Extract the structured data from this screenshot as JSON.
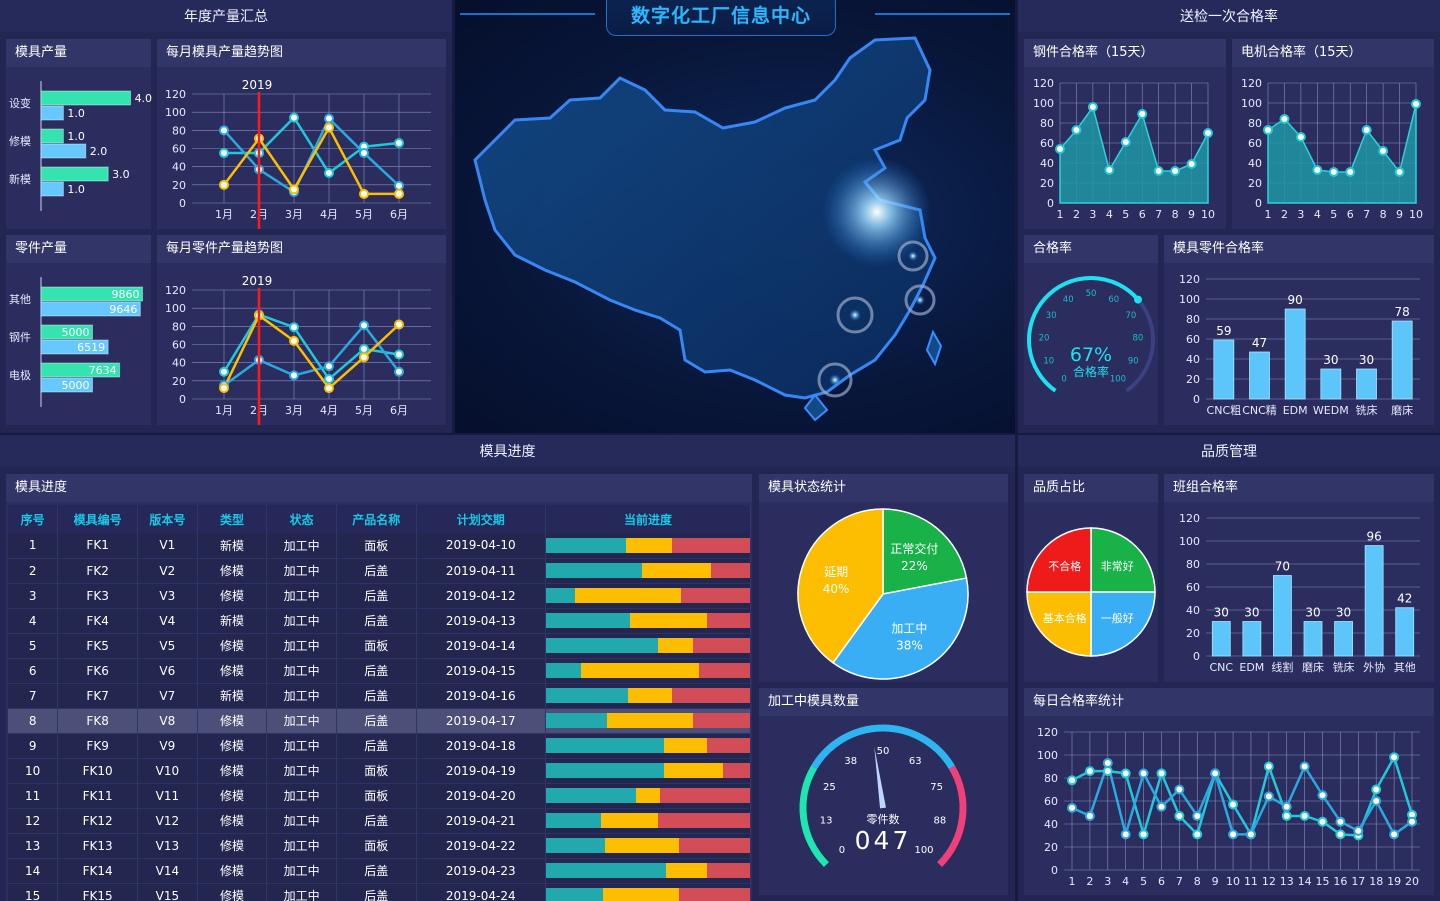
{
  "header": {
    "title": "数字化工厂信息中心"
  },
  "sections": {
    "annual": "年度产量汇总",
    "inspection": "送检一次合格率",
    "mold_progress": "模具进度",
    "quality": "品质管理"
  },
  "colors": {
    "teal": "#21a9ae",
    "yellow": "#fdbd00",
    "red": "#d24d57",
    "cyan": "#1fc8db",
    "green": "#18b249",
    "blue": "#3aaef5",
    "mint": "#34e3b0",
    "skyblue": "#66c8ff"
  },
  "mold_output": {
    "title": "模具产量",
    "categories": [
      "设变",
      "修模",
      "新模"
    ],
    "series": [
      [
        4.0,
        1.0,
        3.0
      ],
      [
        1.0,
        2.0,
        1.0
      ]
    ]
  },
  "part_output": {
    "title": "零件产量",
    "categories": [
      "其他",
      "钢件",
      "电极"
    ],
    "series": [
      [
        9860,
        5000,
        7634
      ],
      [
        9646,
        6519,
        5000
      ]
    ]
  },
  "mold_trend": {
    "title": "每月模具产量趋势图",
    "year": "2019",
    "x": [
      "1月",
      "2月",
      "3月",
      "4月",
      "5月",
      "6月"
    ],
    "yticks": [
      "0",
      "20",
      "40",
      "60",
      "80",
      "100",
      "120"
    ],
    "series": [
      {
        "color": "#1fc8db",
        "values": [
          55,
          55,
          94,
          33,
          62,
          66
        ]
      },
      {
        "color": "#2ba8e0",
        "values": [
          80,
          37,
          12,
          93,
          55,
          19
        ]
      },
      {
        "color": "#fdbd00",
        "values": [
          20,
          71,
          15,
          83,
          10,
          10
        ]
      }
    ]
  },
  "part_trend": {
    "title": "每月零件产量趋势图",
    "year": "2019",
    "x": [
      "1月",
      "2月",
      "3月",
      "4月",
      "5月",
      "6月"
    ],
    "yticks": [
      "0",
      "20",
      "40",
      "60",
      "80",
      "100",
      "120"
    ],
    "series": [
      {
        "color": "#1fc8db",
        "values": [
          30,
          93,
          79,
          22,
          55,
          49
        ]
      },
      {
        "color": "#2ba8e0",
        "values": [
          15,
          43,
          26,
          36,
          81,
          30
        ]
      },
      {
        "color": "#fdbd00",
        "values": [
          12,
          92,
          64,
          12,
          46,
          82
        ]
      }
    ]
  },
  "steel_rate": {
    "title": "钢件合格率（15天）",
    "x": [
      "1",
      "2",
      "3",
      "4",
      "5",
      "6",
      "7",
      "8",
      "9",
      "10"
    ],
    "values": [
      54,
      73,
      96,
      33,
      61,
      89,
      32,
      32,
      39,
      70
    ],
    "yticks": [
      "0",
      "20",
      "40",
      "60",
      "80",
      "100",
      "120"
    ]
  },
  "motor_rate": {
    "title": "电机合格率（15天）",
    "x": [
      "1",
      "2",
      "3",
      "4",
      "5",
      "6",
      "7",
      "8",
      "9",
      "10"
    ],
    "values": [
      73,
      84,
      66,
      33,
      31,
      31,
      73,
      52,
      31,
      99
    ],
    "yticks": [
      "0",
      "20",
      "40",
      "60",
      "80",
      "100",
      "120"
    ]
  },
  "pass_rate": {
    "title": "合格率",
    "value": 67,
    "value_text": "67%",
    "label": "合格率",
    "ticks": [
      "0",
      "10",
      "20",
      "30",
      "40",
      "50",
      "60",
      "70",
      "80",
      "90",
      "100"
    ]
  },
  "mold_part_rate": {
    "title": "模具零件合格率",
    "categories": [
      "CNC粗",
      "CNC精",
      "EDM",
      "WEDM",
      "铣床",
      "磨床"
    ],
    "values": [
      59,
      47,
      90,
      30,
      30,
      78
    ],
    "yticks": [
      "0",
      "20",
      "40",
      "60",
      "80",
      "100",
      "120"
    ]
  },
  "progress_table": {
    "title": "模具进度",
    "columns": [
      "序号",
      "模具编号",
      "版本号",
      "类型",
      "状态",
      "产品名称",
      "计划交期",
      "当前进度"
    ],
    "rows": [
      {
        "no": "1",
        "code": "FK1",
        "ver": "V1",
        "type": "新模",
        "status": "加工中",
        "product": "面板",
        "date": "2019-04-10",
        "p": [
          0.39,
          0.23,
          0.38
        ]
      },
      {
        "no": "2",
        "code": "FK2",
        "ver": "V2",
        "type": "修模",
        "status": "加工中",
        "product": "后盖",
        "date": "2019-04-11",
        "p": [
          0.47,
          0.34,
          0.19
        ]
      },
      {
        "no": "3",
        "code": "FK3",
        "ver": "V3",
        "type": "修模",
        "status": "加工中",
        "product": "后盖",
        "date": "2019-04-12",
        "p": [
          0.14,
          0.52,
          0.34
        ]
      },
      {
        "no": "4",
        "code": "FK4",
        "ver": "V4",
        "type": "新模",
        "status": "加工中",
        "product": "后盖",
        "date": "2019-04-13",
        "p": [
          0.41,
          0.38,
          0.21
        ]
      },
      {
        "no": "5",
        "code": "FK5",
        "ver": "V5",
        "type": "修模",
        "status": "加工中",
        "product": "面板",
        "date": "2019-04-14",
        "p": [
          0.55,
          0.17,
          0.28
        ]
      },
      {
        "no": "6",
        "code": "FK6",
        "ver": "V6",
        "type": "修模",
        "status": "加工中",
        "product": "后盖",
        "date": "2019-04-15",
        "p": [
          0.17,
          0.58,
          0.25
        ]
      },
      {
        "no": "7",
        "code": "FK7",
        "ver": "V7",
        "type": "新模",
        "status": "加工中",
        "product": "后盖",
        "date": "2019-04-16",
        "p": [
          0.4,
          0.22,
          0.38
        ]
      },
      {
        "no": "8",
        "code": "FK8",
        "ver": "V8",
        "type": "修模",
        "status": "加工中",
        "product": "后盖",
        "date": "2019-04-17",
        "p": [
          0.3,
          0.42,
          0.28
        ]
      },
      {
        "no": "9",
        "code": "FK9",
        "ver": "V9",
        "type": "修模",
        "status": "加工中",
        "product": "后盖",
        "date": "2019-04-18",
        "p": [
          0.58,
          0.21,
          0.21
        ]
      },
      {
        "no": "10",
        "code": "FK10",
        "ver": "V10",
        "type": "修模",
        "status": "加工中",
        "product": "面板",
        "date": "2019-04-19",
        "p": [
          0.58,
          0.29,
          0.13
        ]
      },
      {
        "no": "11",
        "code": "FK11",
        "ver": "V11",
        "type": "修模",
        "status": "加工中",
        "product": "面板",
        "date": "2019-04-20",
        "p": [
          0.44,
          0.12,
          0.44
        ]
      },
      {
        "no": "12",
        "code": "FK12",
        "ver": "V12",
        "type": "修模",
        "status": "加工中",
        "product": "后盖",
        "date": "2019-04-21",
        "p": [
          0.27,
          0.28,
          0.45
        ]
      },
      {
        "no": "13",
        "code": "FK13",
        "ver": "V13",
        "type": "修模",
        "status": "加工中",
        "product": "面板",
        "date": "2019-04-22",
        "p": [
          0.29,
          0.36,
          0.35
        ]
      },
      {
        "no": "14",
        "code": "FK14",
        "ver": "V14",
        "type": "修模",
        "status": "加工中",
        "product": "后盖",
        "date": "2019-04-23",
        "p": [
          0.59,
          0.2,
          0.21
        ]
      },
      {
        "no": "15",
        "code": "FK15",
        "ver": "V15",
        "type": "修模",
        "status": "加工中",
        "product": "后盖",
        "date": "2019-04-24",
        "p": [
          0.28,
          0.37,
          0.35
        ]
      }
    ]
  },
  "mold_status": {
    "title": "模具状态统计",
    "slices": [
      {
        "name": "正常交付",
        "value": 22,
        "label": "22%",
        "color": "#18b249"
      },
      {
        "name": "加工中",
        "value": 38,
        "label": "38%",
        "color": "#3aaef5"
      },
      {
        "name": "延期",
        "value": 40,
        "label": "40%",
        "color": "#fdbd00"
      }
    ]
  },
  "machining_count": {
    "title": "加工中模具数量",
    "value": 47,
    "value_text": "047",
    "label": "零件数",
    "ticks": [
      "0",
      "13",
      "25",
      "38",
      "50",
      "63",
      "75",
      "88",
      "100"
    ]
  },
  "quality_ratio": {
    "title": "品质占比",
    "slices": [
      {
        "name": "非常好",
        "value": 25,
        "color": "#18b249"
      },
      {
        "name": "一般好",
        "value": 25,
        "color": "#3aaef5"
      },
      {
        "name": "基本合格",
        "value": 25,
        "color": "#fdbd00"
      },
      {
        "name": "不合格",
        "value": 25,
        "color": "#ef1b1b"
      }
    ]
  },
  "team_rate": {
    "title": "班组合格率",
    "categories": [
      "CNC",
      "EDM",
      "线割",
      "磨床",
      "铣床",
      "外协",
      "其他"
    ],
    "values": [
      30,
      30,
      70,
      30,
      30,
      96,
      42
    ],
    "yticks": [
      "0",
      "20",
      "40",
      "60",
      "80",
      "100",
      "120"
    ]
  },
  "daily_rate": {
    "title": "每日合格率统计",
    "x": [
      "1",
      "2",
      "3",
      "4",
      "5",
      "6",
      "7",
      "8",
      "9",
      "10",
      "11",
      "12",
      "13",
      "14",
      "15",
      "16",
      "17",
      "18",
      "19",
      "20"
    ],
    "yticks": [
      "0",
      "20",
      "40",
      "60",
      "80",
      "100",
      "120"
    ],
    "series": [
      {
        "color": "#1fc8db",
        "values": [
          78,
          86,
          86,
          84,
          31,
          84,
          47,
          31,
          84,
          57,
          31,
          90,
          47,
          47,
          42,
          31,
          30,
          70,
          98,
          48
        ]
      },
      {
        "color": "#2ba8e0",
        "values": [
          54,
          47,
          93,
          31,
          84,
          55,
          70,
          47,
          84,
          31,
          31,
          64,
          55,
          90,
          65,
          42,
          34,
          60,
          31,
          42
        ]
      }
    ]
  }
}
